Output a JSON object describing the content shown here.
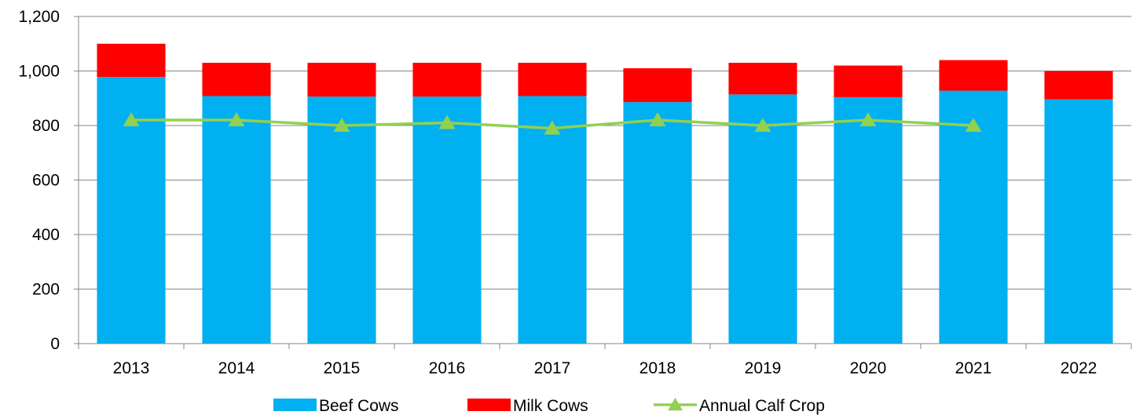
{
  "chart_data": {
    "type": "bar",
    "stacked": true,
    "categories": [
      "2013",
      "2014",
      "2015",
      "2016",
      "2017",
      "2018",
      "2019",
      "2020",
      "2021",
      "2022"
    ],
    "series": [
      {
        "name": "Beef Cows",
        "kind": "bar",
        "color": "#00b0f0",
        "values": [
          978,
          908,
          906,
          906,
          908,
          886,
          914,
          904,
          928,
          896
        ]
      },
      {
        "name": "Milk Cows",
        "kind": "bar",
        "color": "#ff0000",
        "values": [
          122,
          122,
          124,
          124,
          122,
          124,
          116,
          116,
          112,
          104
        ]
      },
      {
        "name": "Annual Calf Crop",
        "kind": "line",
        "marker": "triangle",
        "color": "#92d050",
        "values": [
          820,
          820,
          800,
          810,
          790,
          820,
          800,
          820,
          800,
          null
        ]
      }
    ],
    "ylim": [
      0,
      1200
    ],
    "yticks": [
      "0",
      "200",
      "400",
      "600",
      "800",
      "1,000",
      "1,200"
    ],
    "ytick_values": [
      0,
      200,
      400,
      600,
      800,
      1000,
      1200
    ],
    "grid": true,
    "legend_position": "bottom"
  }
}
